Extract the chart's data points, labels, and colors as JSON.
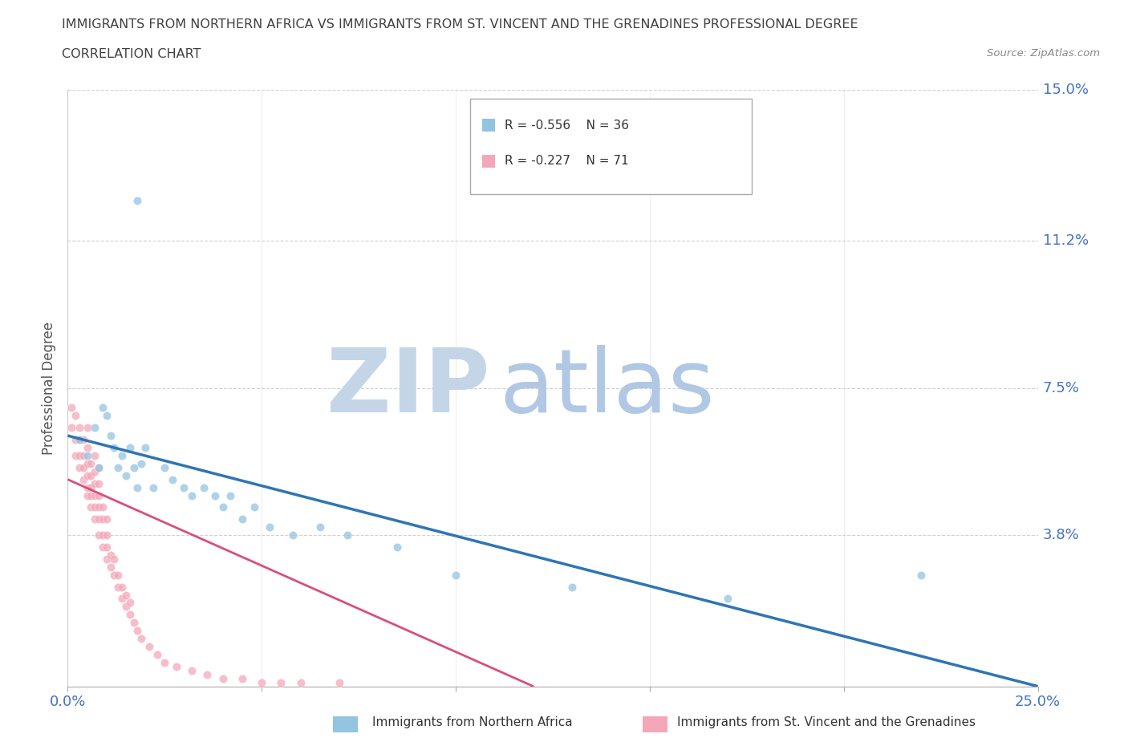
{
  "title_line1": "IMMIGRANTS FROM NORTHERN AFRICA VS IMMIGRANTS FROM ST. VINCENT AND THE GRENADINES PROFESSIONAL DEGREE",
  "title_line2": "CORRELATION CHART",
  "source_text": "Source: ZipAtlas.com",
  "ylabel": "Professional Degree",
  "xlim": [
    0,
    0.25
  ],
  "ylim": [
    0,
    0.15
  ],
  "grid_color": "#cccccc",
  "watermark_zip": "ZIP",
  "watermark_atlas": "atlas",
  "watermark_color_zip": "#c8d8ec",
  "watermark_color_atlas": "#b8cfe8",
  "legend_r1": "R = -0.556",
  "legend_n1": "N = 36",
  "legend_r2": "R = -0.227",
  "legend_n2": "N = 71",
  "color_blue": "#93c4e0",
  "color_pink": "#f4a7b9",
  "color_trend_blue": "#2e75b6",
  "color_trend_pink": "#d94f7a",
  "title_color": "#404040",
  "axis_label_color": "#555555",
  "tick_color_blue": "#4472c4",
  "source_color": "#888888",
  "blue_x": [
    0.003,
    0.005,
    0.007,
    0.008,
    0.009,
    0.01,
    0.011,
    0.012,
    0.013,
    0.014,
    0.015,
    0.016,
    0.017,
    0.018,
    0.019,
    0.02,
    0.022,
    0.025,
    0.027,
    0.03,
    0.032,
    0.035,
    0.038,
    0.04,
    0.042,
    0.045,
    0.048,
    0.052,
    0.058,
    0.065,
    0.072,
    0.085,
    0.1,
    0.13,
    0.17,
    0.22
  ],
  "blue_y": [
    0.062,
    0.058,
    0.065,
    0.055,
    0.07,
    0.068,
    0.063,
    0.06,
    0.055,
    0.058,
    0.053,
    0.06,
    0.055,
    0.05,
    0.056,
    0.06,
    0.05,
    0.055,
    0.052,
    0.05,
    0.048,
    0.05,
    0.048,
    0.045,
    0.048,
    0.042,
    0.045,
    0.04,
    0.038,
    0.04,
    0.038,
    0.035,
    0.028,
    0.025,
    0.022,
    0.028
  ],
  "blue_outlier_x": [
    0.018
  ],
  "blue_outlier_y": [
    0.122
  ],
  "pink_x": [
    0.001,
    0.001,
    0.002,
    0.002,
    0.002,
    0.003,
    0.003,
    0.003,
    0.003,
    0.004,
    0.004,
    0.004,
    0.004,
    0.005,
    0.005,
    0.005,
    0.005,
    0.005,
    0.005,
    0.006,
    0.006,
    0.006,
    0.006,
    0.006,
    0.007,
    0.007,
    0.007,
    0.007,
    0.007,
    0.007,
    0.008,
    0.008,
    0.008,
    0.008,
    0.008,
    0.008,
    0.009,
    0.009,
    0.009,
    0.009,
    0.01,
    0.01,
    0.01,
    0.01,
    0.011,
    0.011,
    0.012,
    0.012,
    0.013,
    0.013,
    0.014,
    0.014,
    0.015,
    0.015,
    0.016,
    0.016,
    0.017,
    0.018,
    0.019,
    0.021,
    0.023,
    0.025,
    0.028,
    0.032,
    0.036,
    0.04,
    0.045,
    0.05,
    0.055,
    0.06,
    0.07
  ],
  "pink_y": [
    0.065,
    0.07,
    0.058,
    0.062,
    0.068,
    0.055,
    0.058,
    0.062,
    0.065,
    0.052,
    0.055,
    0.058,
    0.062,
    0.048,
    0.05,
    0.053,
    0.056,
    0.06,
    0.065,
    0.045,
    0.048,
    0.05,
    0.053,
    0.056,
    0.042,
    0.045,
    0.048,
    0.051,
    0.054,
    0.058,
    0.038,
    0.042,
    0.045,
    0.048,
    0.051,
    0.055,
    0.035,
    0.038,
    0.042,
    0.045,
    0.032,
    0.035,
    0.038,
    0.042,
    0.03,
    0.033,
    0.028,
    0.032,
    0.025,
    0.028,
    0.022,
    0.025,
    0.02,
    0.023,
    0.018,
    0.021,
    0.016,
    0.014,
    0.012,
    0.01,
    0.008,
    0.006,
    0.005,
    0.004,
    0.003,
    0.002,
    0.002,
    0.001,
    0.001,
    0.001,
    0.001
  ],
  "blue_trend_x0": 0.0,
  "blue_trend_y0": 0.063,
  "blue_trend_x1": 0.25,
  "blue_trend_y1": 0.0,
  "pink_trend_x0": 0.0,
  "pink_trend_y0": 0.052,
  "pink_trend_x1": 0.12,
  "pink_trend_y1": 0.0
}
